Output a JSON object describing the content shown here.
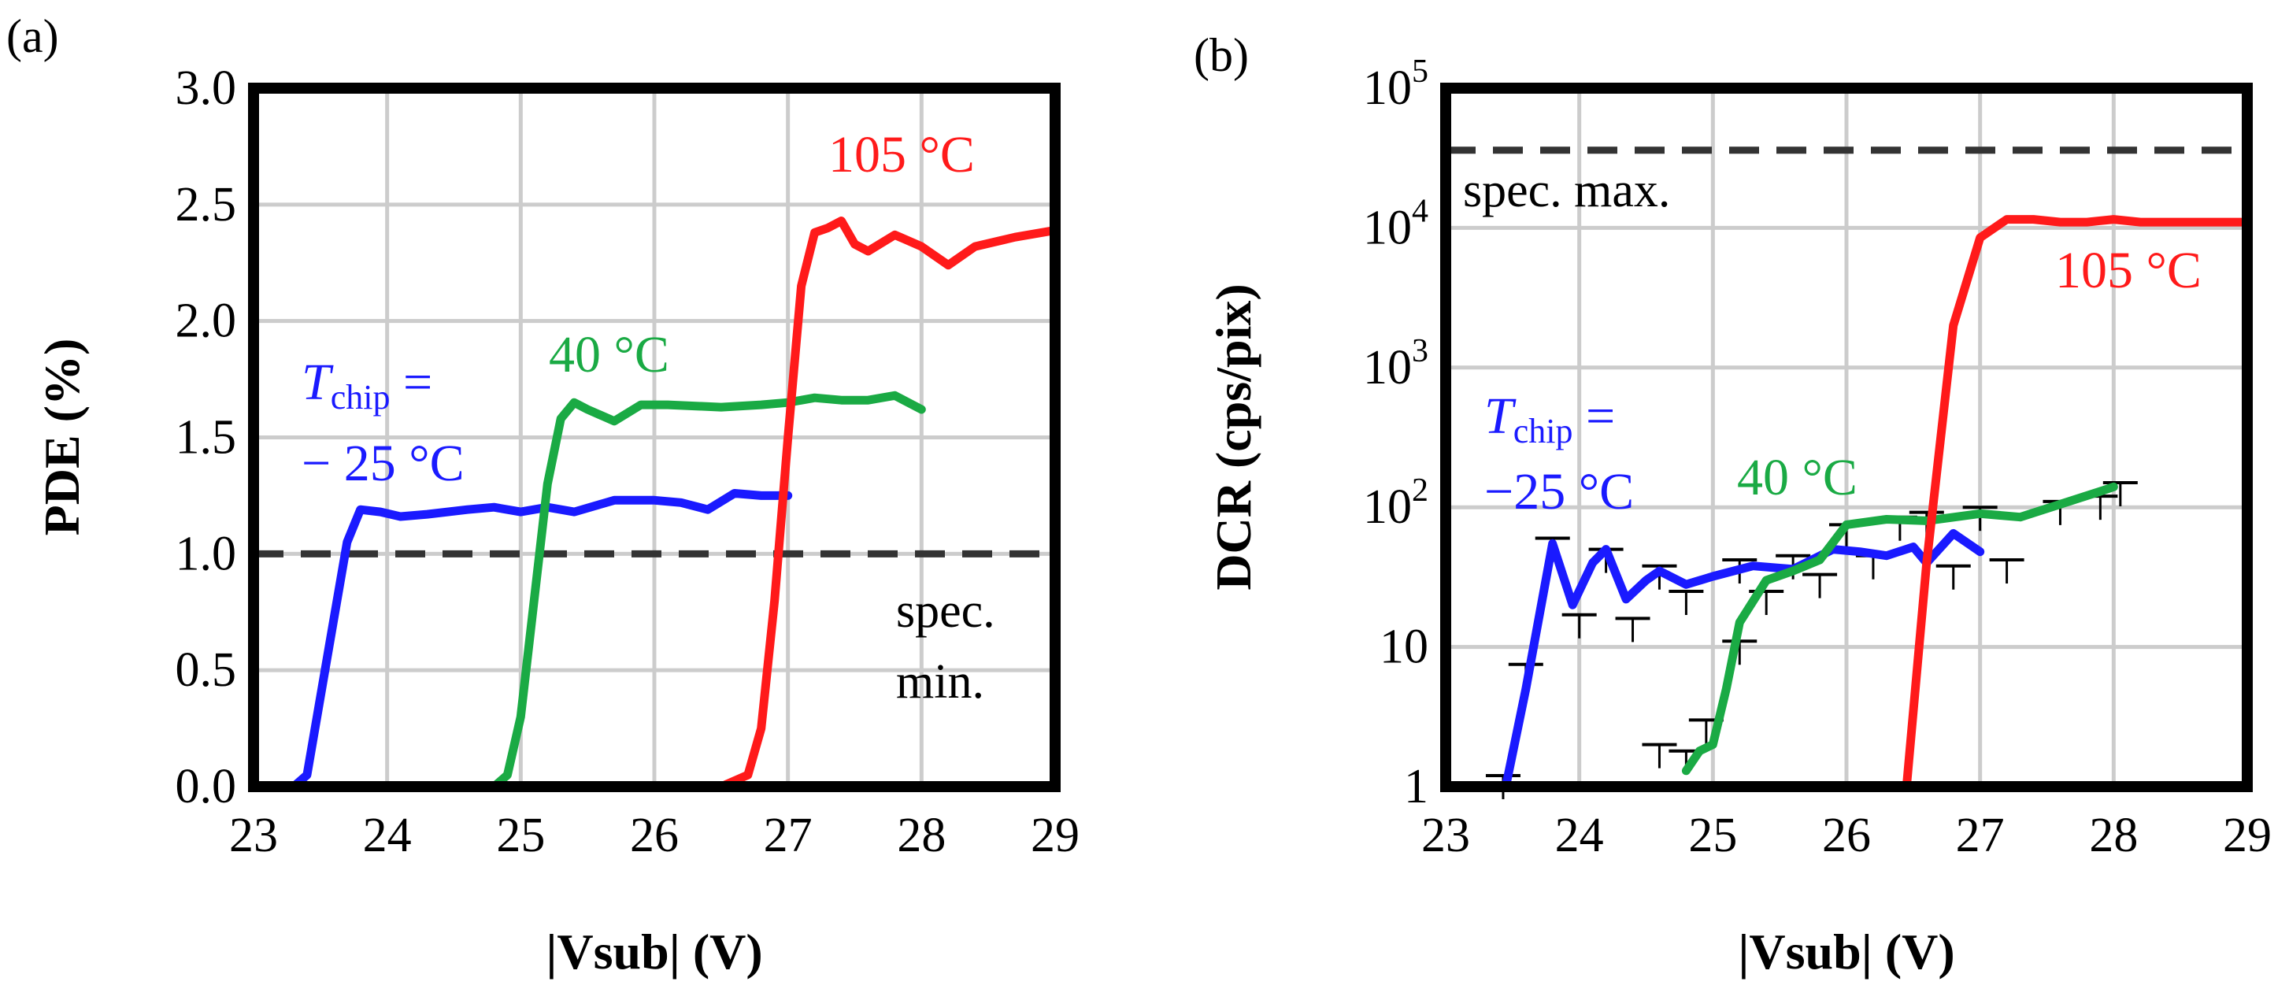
{
  "panels": [
    {
      "label": "(a)"
    },
    {
      "label": "(b)"
    }
  ],
  "colors": {
    "cold": "#1a1aff",
    "warm": "#1aaa44",
    "hot": "#ff1a1a",
    "spec": "#333333",
    "grid": "#cccccc"
  },
  "chart_data": [
    {
      "type": "line",
      "panel": "(a)",
      "xlabel": "|Vsub| (V)",
      "ylabel": "PDE (%)",
      "xlim": [
        23,
        29
      ],
      "ylim": [
        0,
        3
      ],
      "yscale": "linear",
      "x_ticks": [
        "23",
        "24",
        "25",
        "26",
        "27",
        "28",
        "29"
      ],
      "y_ticks": [
        "0.0",
        "0.5",
        "1.0",
        "1.5",
        "2.0",
        "2.5",
        "3.0"
      ],
      "y_tick_values": [
        0,
        0.5,
        1.0,
        1.5,
        2.0,
        2.5,
        3.0
      ],
      "series": [
        {
          "name": "T_chip = − 25 °C",
          "color_key": "cold",
          "points": [
            [
              23.0,
              0.0
            ],
            [
              23.3,
              0.0
            ],
            [
              23.4,
              0.05
            ],
            [
              23.55,
              0.55
            ],
            [
              23.7,
              1.05
            ],
            [
              23.8,
              1.19
            ],
            [
              23.95,
              1.18
            ],
            [
              24.1,
              1.16
            ],
            [
              24.3,
              1.17
            ],
            [
              24.6,
              1.19
            ],
            [
              24.8,
              1.2
            ],
            [
              25.0,
              1.18
            ],
            [
              25.2,
              1.2
            ],
            [
              25.4,
              1.18
            ],
            [
              25.7,
              1.23
            ],
            [
              26.0,
              1.23
            ],
            [
              26.2,
              1.22
            ],
            [
              26.4,
              1.19
            ],
            [
              26.6,
              1.26
            ],
            [
              26.8,
              1.25
            ],
            [
              27.0,
              1.25
            ]
          ]
        },
        {
          "name": "40 °C",
          "color_key": "warm",
          "points": [
            [
              24.0,
              0.0
            ],
            [
              24.5,
              0.0
            ],
            [
              24.8,
              0.0
            ],
            [
              24.9,
              0.05
            ],
            [
              25.0,
              0.3
            ],
            [
              25.1,
              0.8
            ],
            [
              25.2,
              1.3
            ],
            [
              25.3,
              1.58
            ],
            [
              25.4,
              1.65
            ],
            [
              25.5,
              1.62
            ],
            [
              25.7,
              1.57
            ],
            [
              25.9,
              1.64
            ],
            [
              26.1,
              1.64
            ],
            [
              26.5,
              1.63
            ],
            [
              26.8,
              1.64
            ],
            [
              27.0,
              1.65
            ],
            [
              27.2,
              1.67
            ],
            [
              27.4,
              1.66
            ],
            [
              27.6,
              1.66
            ],
            [
              27.8,
              1.68
            ],
            [
              28.0,
              1.62
            ]
          ]
        },
        {
          "name": "105 °C",
          "color_key": "hot",
          "points": [
            [
              25.0,
              0.0
            ],
            [
              26.5,
              0.0
            ],
            [
              26.7,
              0.05
            ],
            [
              26.8,
              0.25
            ],
            [
              26.9,
              0.8
            ],
            [
              27.0,
              1.5
            ],
            [
              27.1,
              2.15
            ],
            [
              27.2,
              2.38
            ],
            [
              27.3,
              2.4
            ],
            [
              27.4,
              2.43
            ],
            [
              27.5,
              2.33
            ],
            [
              27.6,
              2.3
            ],
            [
              27.8,
              2.37
            ],
            [
              28.0,
              2.32
            ],
            [
              28.2,
              2.24
            ],
            [
              28.4,
              2.32
            ],
            [
              28.7,
              2.36
            ],
            [
              29.0,
              2.39
            ]
          ]
        }
      ],
      "spec": {
        "value": 1.0,
        "label_lines": [
          "spec.",
          "min."
        ]
      },
      "annotations": {
        "tchip_T": "T",
        "tchip_sub": "chip",
        "tchip_eq": " =",
        "tchip_temp": "− 25 °C",
        "warm": "40 °C",
        "hot": "105 °C"
      }
    },
    {
      "type": "line",
      "panel": "(b)",
      "xlabel": "|Vsub| (V)",
      "ylabel": "DCR (cps/pix)",
      "xlim": [
        23,
        29
      ],
      "ylim": [
        1,
        100000
      ],
      "yscale": "log",
      "x_ticks": [
        "23",
        "24",
        "25",
        "26",
        "27",
        "28",
        "29"
      ],
      "y_ticks": [
        {
          "base": "1",
          "exp": ""
        },
        {
          "base": "10",
          "exp": ""
        },
        {
          "base": "10",
          "exp": "2"
        },
        {
          "base": "10",
          "exp": "3"
        },
        {
          "base": "10",
          "exp": "4"
        },
        {
          "base": "10",
          "exp": "5"
        }
      ],
      "y_tick_values": [
        1,
        10,
        100,
        1000,
        10000,
        100000
      ],
      "series": [
        {
          "name": "T_chip = −25 °C",
          "color_key": "cold",
          "points": [
            [
              23.45,
              1.0
            ],
            [
              23.6,
              5.0
            ],
            [
              23.8,
              55
            ],
            [
              23.95,
              20
            ],
            [
              24.1,
              40
            ],
            [
              24.2,
              50
            ],
            [
              24.35,
              22
            ],
            [
              24.5,
              30
            ],
            [
              24.6,
              35
            ],
            [
              24.8,
              28
            ],
            [
              25.0,
              32
            ],
            [
              25.3,
              38
            ],
            [
              25.6,
              36
            ],
            [
              25.9,
              50
            ],
            [
              26.1,
              48
            ],
            [
              26.3,
              45
            ],
            [
              26.5,
              52
            ],
            [
              26.6,
              40
            ],
            [
              26.8,
              65
            ],
            [
              27.0,
              48
            ]
          ]
        },
        {
          "name": "40 °C",
          "color_key": "warm",
          "points": [
            [
              24.8,
              1.3
            ],
            [
              24.9,
              1.8
            ],
            [
              25.0,
              2.0
            ],
            [
              25.1,
              5.0
            ],
            [
              25.2,
              15
            ],
            [
              25.4,
              30
            ],
            [
              25.6,
              35
            ],
            [
              25.8,
              42
            ],
            [
              26.0,
              75
            ],
            [
              26.3,
              82
            ],
            [
              26.6,
              80
            ],
            [
              27.0,
              90
            ],
            [
              27.3,
              85
            ],
            [
              27.6,
              105
            ],
            [
              27.9,
              130
            ],
            [
              28.0,
              140
            ]
          ]
        },
        {
          "name": "105 °C",
          "color_key": "hot",
          "points": [
            [
              26.45,
              1.0
            ],
            [
              26.6,
              40
            ],
            [
              26.8,
              2000
            ],
            [
              27.0,
              8500
            ],
            [
              27.2,
              11500
            ],
            [
              27.4,
              11500
            ],
            [
              27.6,
              11000
            ],
            [
              27.8,
              11000
            ],
            [
              28.0,
              11500
            ],
            [
              28.2,
              11000
            ],
            [
              28.6,
              11000
            ],
            [
              29.0,
              11000
            ]
          ]
        }
      ],
      "error_bars": [
        {
          "x": 23.43,
          "y": 1.2
        },
        {
          "x": 23.6,
          "y": 7.5
        },
        {
          "x": 23.8,
          "y": 60
        },
        {
          "x": 24.0,
          "y": 17
        },
        {
          "x": 24.2,
          "y": 50
        },
        {
          "x": 24.4,
          "y": 16
        },
        {
          "x": 24.6,
          "y": 38
        },
        {
          "x": 24.8,
          "y": 25
        },
        {
          "x": 24.95,
          "y": 3.0
        },
        {
          "x": 25.2,
          "y": 11
        },
        {
          "x": 25.2,
          "y": 42
        },
        {
          "x": 25.4,
          "y": 25
        },
        {
          "x": 25.6,
          "y": 45
        },
        {
          "x": 25.8,
          "y": 33
        },
        {
          "x": 26.0,
          "y": 75
        },
        {
          "x": 26.2,
          "y": 45
        },
        {
          "x": 26.4,
          "y": 85
        },
        {
          "x": 26.6,
          "y": 92
        },
        {
          "x": 26.8,
          "y": 38
        },
        {
          "x": 27.0,
          "y": 100
        },
        {
          "x": 27.2,
          "y": 42
        },
        {
          "x": 27.6,
          "y": 110
        },
        {
          "x": 27.9,
          "y": 120
        },
        {
          "x": 24.6,
          "y": 2.0
        },
        {
          "x": 24.8,
          "y": 1.8
        },
        {
          "x": 28.05,
          "y": 150
        }
      ],
      "spec": {
        "value": 36000,
        "label_lines": [
          "spec. max."
        ]
      },
      "annotations": {
        "tchip_T": "T",
        "tchip_sub": "chip",
        "tchip_eq": " =",
        "tchip_temp": "−25 °C",
        "warm": "40 °C",
        "hot": "105 °C"
      }
    }
  ]
}
